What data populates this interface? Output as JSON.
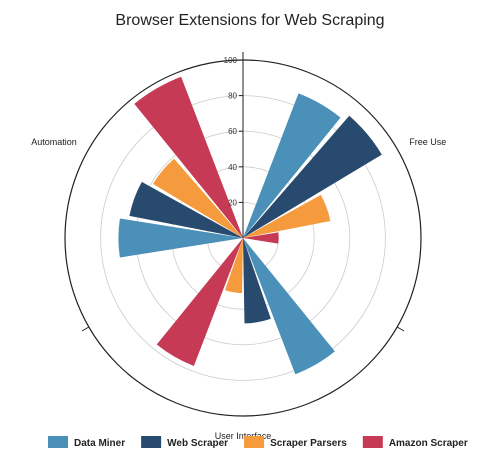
{
  "chart_data": {
    "type": "polar-bar",
    "title": "Browser Extensions for Web Scraping",
    "categories": [
      "Free Use",
      "User Interface",
      "Automation"
    ],
    "series": [
      {
        "name": "Data Miner",
        "color": "#4a90b8",
        "values": [
          87,
          82,
          70
        ]
      },
      {
        "name": "Web Scraper",
        "color": "#274a6e",
        "values": [
          91,
          48,
          65
        ]
      },
      {
        "name": "Scraper Parsers",
        "color": "#f59b3e",
        "values": [
          50,
          31,
          59
        ]
      },
      {
        "name": "Amazon Scraper",
        "color": "#c73a55",
        "values": [
          20,
          77,
          97
        ]
      }
    ],
    "radial_axis": {
      "min": 0,
      "max": 100,
      "ticks": [
        20,
        40,
        60,
        80,
        100
      ]
    },
    "grid": true,
    "legend_position": "bottom"
  }
}
